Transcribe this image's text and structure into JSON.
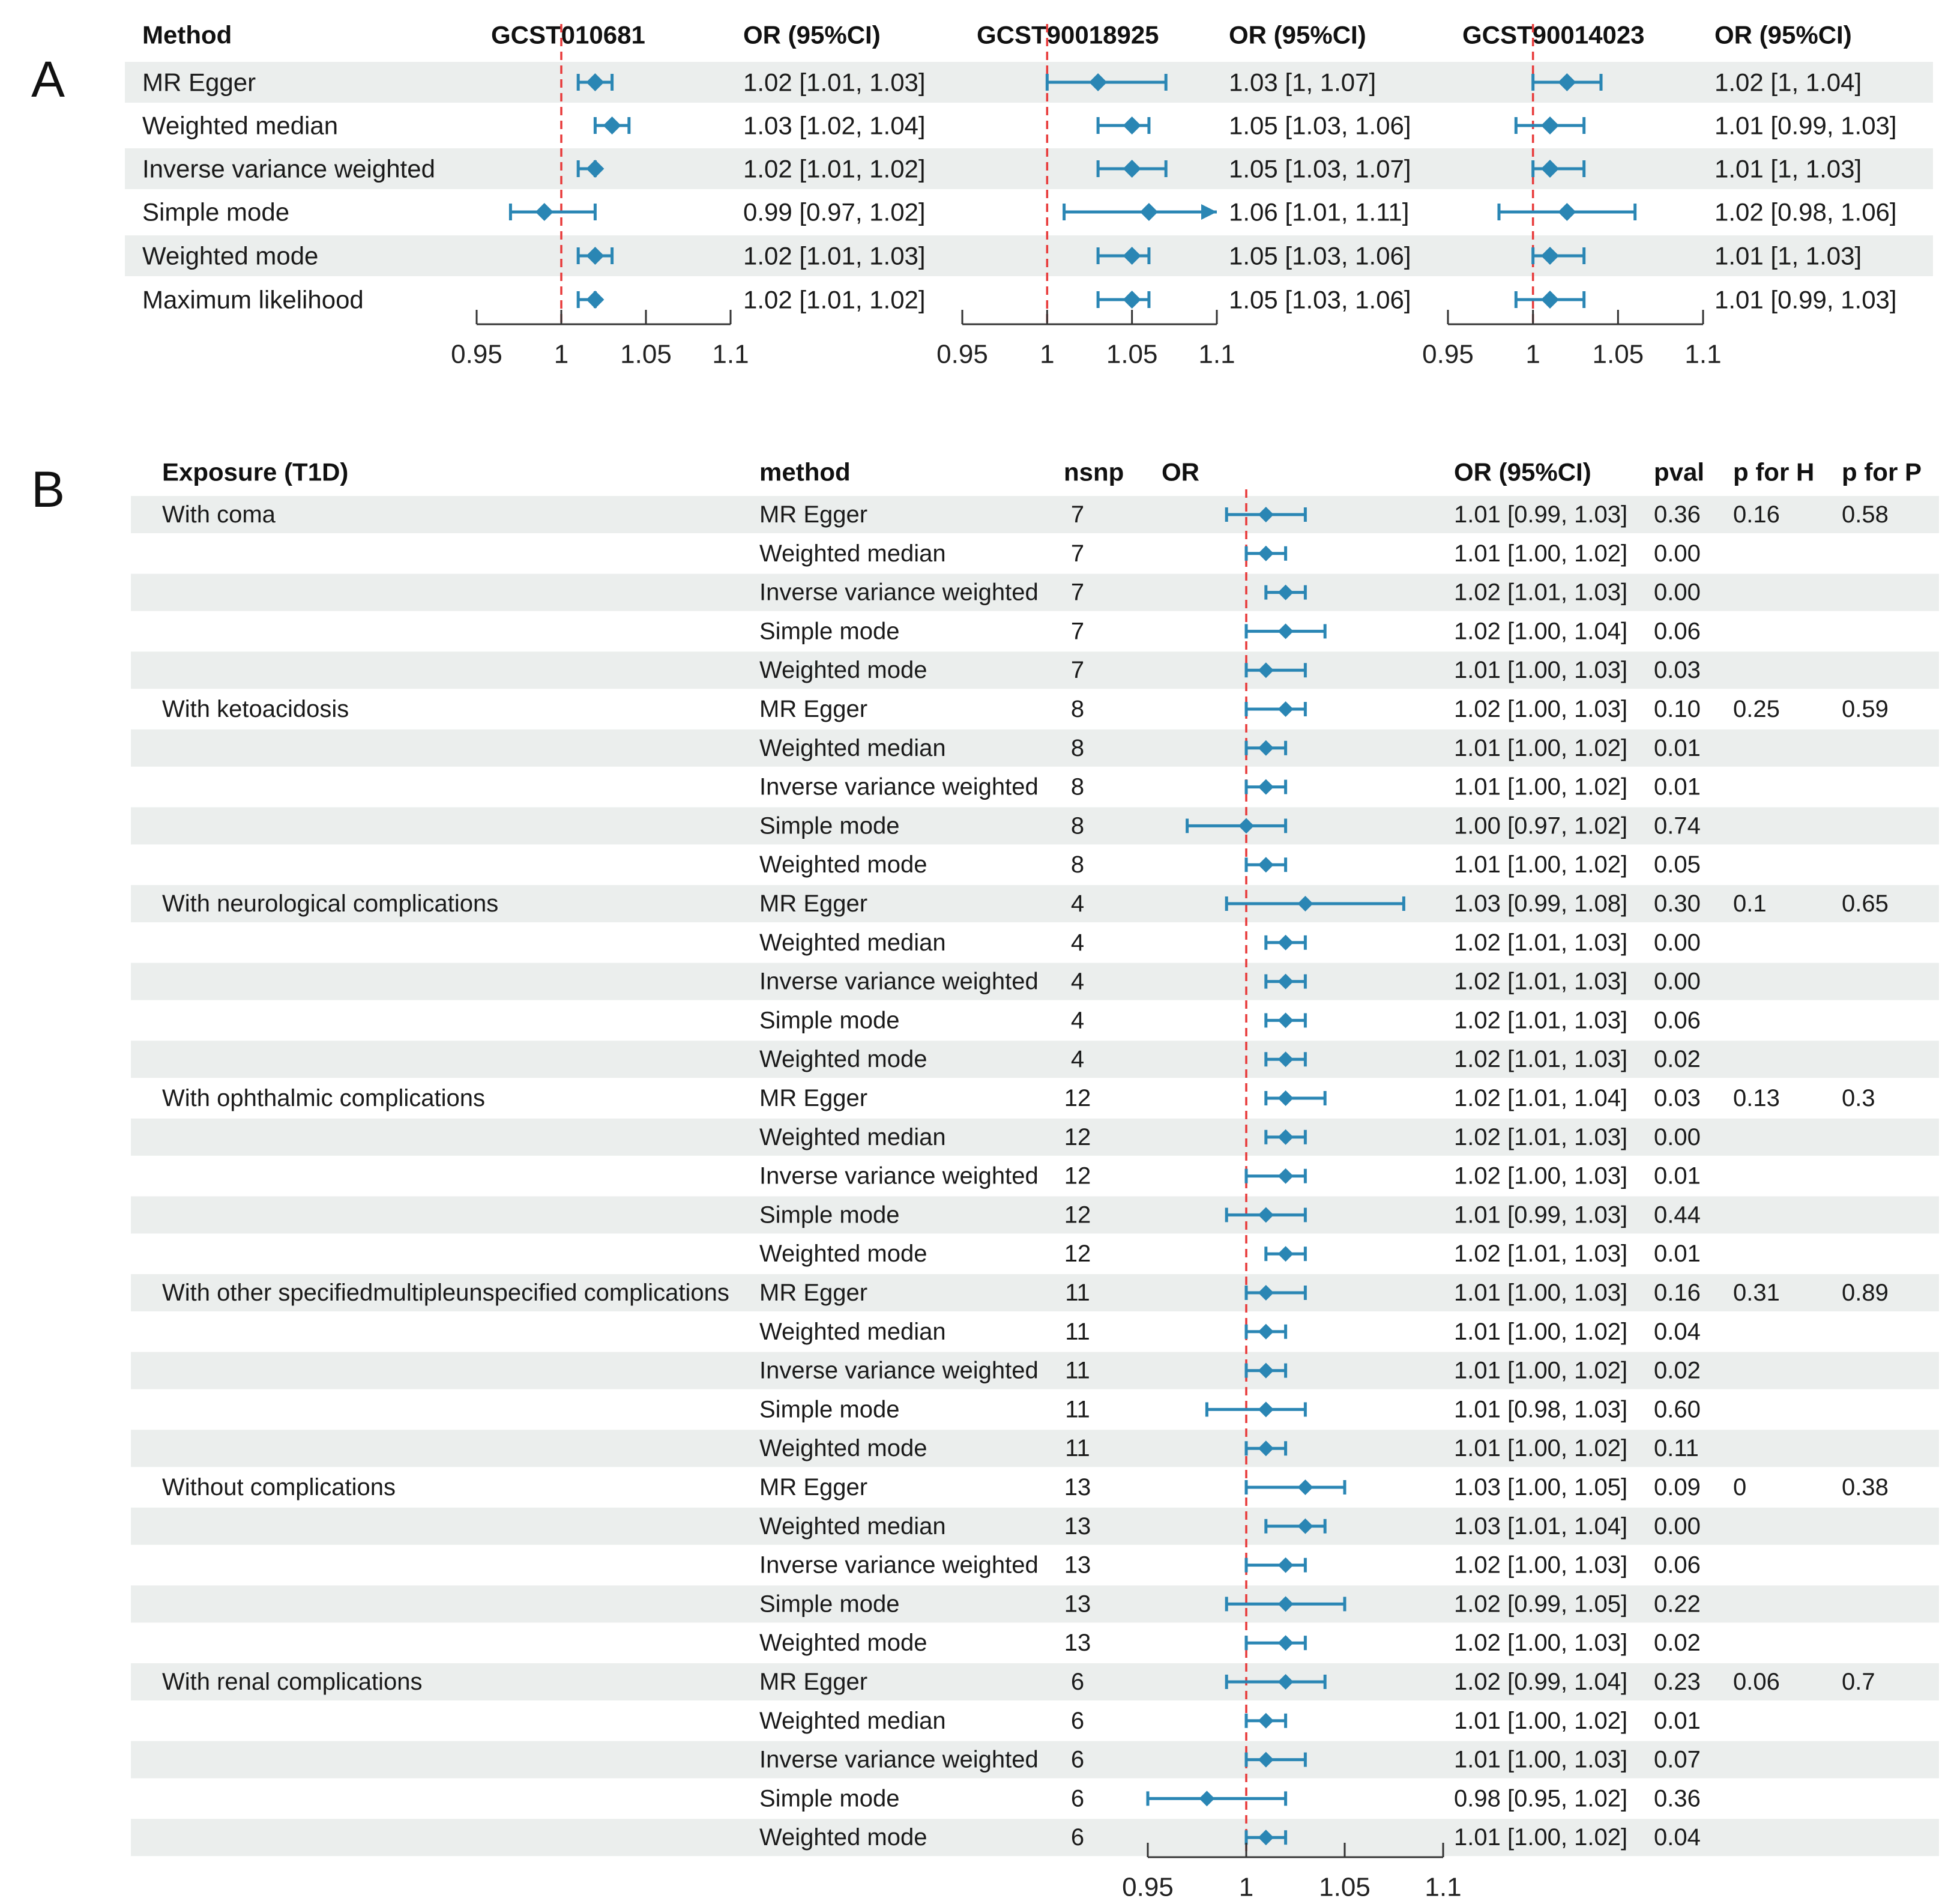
{
  "panel_a": {
    "letter": "A",
    "headers": {
      "method": "Method",
      "or": "OR (95%CI)"
    },
    "methods": [
      "MR Egger",
      "Weighted median",
      "Inverse variance weighted",
      "Simple mode",
      "Weighted mode",
      "Maximum likelihood"
    ],
    "xlim": [
      0.95,
      1.1
    ],
    "ticks": [
      0.95,
      1,
      1.05,
      1.1
    ],
    "tick_labels": [
      "0.95",
      "1",
      "1.05",
      "1.1"
    ],
    "reference": 1,
    "studies": [
      {
        "name": "GCST010681",
        "or_text": [
          "1.02 [1.01, 1.03]",
          "1.03 [1.02, 1.04]",
          "1.02 [1.01, 1.02]",
          "0.99 [0.97, 1.02]",
          "1.02 [1.01, 1.03]",
          "1.02 [1.01, 1.02]"
        ],
        "or": [
          1.02,
          1.03,
          1.02,
          0.99,
          1.02,
          1.02
        ],
        "lower": [
          1.01,
          1.02,
          1.01,
          0.97,
          1.01,
          1.01
        ],
        "upper": [
          1.03,
          1.04,
          1.02,
          1.02,
          1.03,
          1.02
        ]
      },
      {
        "name": "GCST90018925",
        "or_text": [
          "1.03 [1, 1.07]",
          "1.05 [1.03, 1.06]",
          "1.05 [1.03, 1.07]",
          "1.06 [1.01, 1.11]",
          "1.05 [1.03, 1.06]",
          "1.05 [1.03, 1.06]"
        ],
        "or": [
          1.03,
          1.05,
          1.05,
          1.06,
          1.05,
          1.05
        ],
        "lower": [
          1.0,
          1.03,
          1.03,
          1.01,
          1.03,
          1.03
        ],
        "upper": [
          1.07,
          1.06,
          1.07,
          1.11,
          1.06,
          1.06
        ]
      },
      {
        "name": "GCST90014023",
        "or_text": [
          "1.02 [1, 1.04]",
          "1.01 [0.99, 1.03]",
          "1.01 [1, 1.03]",
          "1.02 [0.98, 1.06]",
          "1.01 [1, 1.03]",
          "1.01 [0.99, 1.03]"
        ],
        "or": [
          1.02,
          1.01,
          1.01,
          1.02,
          1.01,
          1.01
        ],
        "lower": [
          1.0,
          0.99,
          1.0,
          0.98,
          1.0,
          0.99
        ],
        "upper": [
          1.04,
          1.03,
          1.03,
          1.06,
          1.03,
          1.03
        ]
      }
    ]
  },
  "panel_b": {
    "letter": "B",
    "headers": {
      "exposure": "Exposure (T1D)",
      "method": "method",
      "nsnp": "nsnp",
      "or": "OR",
      "or_ci": "OR (95%CI)",
      "pval": "pval",
      "p_h": "p for H",
      "p_p": "p for P"
    },
    "xlim": [
      0.95,
      1.1
    ],
    "ticks": [
      0.95,
      1,
      1.05,
      1.1
    ],
    "tick_labels": [
      "0.95",
      "1",
      "1.05",
      "1.1"
    ],
    "reference": 1,
    "rows": [
      {
        "exposure": "With coma",
        "method": "MR Egger",
        "nsnp": "7",
        "or_text": "1.01 [0.99, 1.03]",
        "pval": "0.36",
        "p_h": "0.16",
        "p_p": "0.58",
        "or": 1.01,
        "lower": 0.99,
        "upper": 1.03
      },
      {
        "exposure": "",
        "method": "Weighted median",
        "nsnp": "7",
        "or_text": "1.01 [1.00, 1.02]",
        "pval": "0.00",
        "p_h": "",
        "p_p": "",
        "or": 1.01,
        "lower": 1.0,
        "upper": 1.02
      },
      {
        "exposure": "",
        "method": "Inverse variance weighted",
        "nsnp": "7",
        "or_text": "1.02 [1.01, 1.03]",
        "pval": "0.00",
        "p_h": "",
        "p_p": "",
        "or": 1.02,
        "lower": 1.01,
        "upper": 1.03
      },
      {
        "exposure": "",
        "method": "Simple mode",
        "nsnp": "7",
        "or_text": "1.02 [1.00, 1.04]",
        "pval": "0.06",
        "p_h": "",
        "p_p": "",
        "or": 1.02,
        "lower": 1.0,
        "upper": 1.04
      },
      {
        "exposure": "",
        "method": "Weighted mode",
        "nsnp": "7",
        "or_text": "1.01 [1.00, 1.03]",
        "pval": "0.03",
        "p_h": "",
        "p_p": "",
        "or": 1.01,
        "lower": 1.0,
        "upper": 1.03
      },
      {
        "exposure": "With ketoacidosis",
        "method": "MR Egger",
        "nsnp": "8",
        "or_text": "1.02 [1.00, 1.03]",
        "pval": "0.10",
        "p_h": "0.25",
        "p_p": "0.59",
        "or": 1.02,
        "lower": 1.0,
        "upper": 1.03
      },
      {
        "exposure": "",
        "method": "Weighted median",
        "nsnp": "8",
        "or_text": "1.01 [1.00, 1.02]",
        "pval": "0.01",
        "p_h": "",
        "p_p": "",
        "or": 1.01,
        "lower": 1.0,
        "upper": 1.02
      },
      {
        "exposure": "",
        "method": "Inverse variance weighted",
        "nsnp": "8",
        "or_text": "1.01 [1.00, 1.02]",
        "pval": "0.01",
        "p_h": "",
        "p_p": "",
        "or": 1.01,
        "lower": 1.0,
        "upper": 1.02
      },
      {
        "exposure": "",
        "method": "Simple mode",
        "nsnp": "8",
        "or_text": "1.00 [0.97, 1.02]",
        "pval": "0.74",
        "p_h": "",
        "p_p": "",
        "or": 1.0,
        "lower": 0.97,
        "upper": 1.02
      },
      {
        "exposure": "",
        "method": "Weighted mode",
        "nsnp": "8",
        "or_text": "1.01 [1.00, 1.02]",
        "pval": "0.05",
        "p_h": "",
        "p_p": "",
        "or": 1.01,
        "lower": 1.0,
        "upper": 1.02
      },
      {
        "exposure": "With neurological complications",
        "method": "MR Egger",
        "nsnp": "4",
        "or_text": "1.03 [0.99, 1.08]",
        "pval": "0.30",
        "p_h": "0.1",
        "p_p": "0.65",
        "or": 1.03,
        "lower": 0.99,
        "upper": 1.08
      },
      {
        "exposure": "",
        "method": "Weighted median",
        "nsnp": "4",
        "or_text": "1.02 [1.01, 1.03]",
        "pval": "0.00",
        "p_h": "",
        "p_p": "",
        "or": 1.02,
        "lower": 1.01,
        "upper": 1.03
      },
      {
        "exposure": "",
        "method": "Inverse variance weighted",
        "nsnp": "4",
        "or_text": "1.02 [1.01, 1.03]",
        "pval": "0.00",
        "p_h": "",
        "p_p": "",
        "or": 1.02,
        "lower": 1.01,
        "upper": 1.03
      },
      {
        "exposure": "",
        "method": "Simple mode",
        "nsnp": "4",
        "or_text": "1.02 [1.01, 1.03]",
        "pval": "0.06",
        "p_h": "",
        "p_p": "",
        "or": 1.02,
        "lower": 1.01,
        "upper": 1.03
      },
      {
        "exposure": "",
        "method": "Weighted mode",
        "nsnp": "4",
        "or_text": "1.02 [1.01, 1.03]",
        "pval": "0.02",
        "p_h": "",
        "p_p": "",
        "or": 1.02,
        "lower": 1.01,
        "upper": 1.03
      },
      {
        "exposure": "With ophthalmic complications",
        "method": "MR Egger",
        "nsnp": "12",
        "or_text": "1.02 [1.01, 1.04]",
        "pval": "0.03",
        "p_h": "0.13",
        "p_p": "0.3",
        "or": 1.02,
        "lower": 1.01,
        "upper": 1.04
      },
      {
        "exposure": "",
        "method": "Weighted median",
        "nsnp": "12",
        "or_text": "1.02 [1.01, 1.03]",
        "pval": "0.00",
        "p_h": "",
        "p_p": "",
        "or": 1.02,
        "lower": 1.01,
        "upper": 1.03
      },
      {
        "exposure": "",
        "method": "Inverse variance weighted",
        "nsnp": "12",
        "or_text": "1.02 [1.00, 1.03]",
        "pval": "0.01",
        "p_h": "",
        "p_p": "",
        "or": 1.02,
        "lower": 1.0,
        "upper": 1.03
      },
      {
        "exposure": "",
        "method": "Simple mode",
        "nsnp": "12",
        "or_text": "1.01 [0.99, 1.03]",
        "pval": "0.44",
        "p_h": "",
        "p_p": "",
        "or": 1.01,
        "lower": 0.99,
        "upper": 1.03
      },
      {
        "exposure": "",
        "method": "Weighted mode",
        "nsnp": "12",
        "or_text": "1.02 [1.01, 1.03]",
        "pval": "0.01",
        "p_h": "",
        "p_p": "",
        "or": 1.02,
        "lower": 1.01,
        "upper": 1.03
      },
      {
        "exposure": "With other specifiedmultipleunspecified complications",
        "method": "MR Egger",
        "nsnp": "11",
        "or_text": "1.01 [1.00, 1.03]",
        "pval": "0.16",
        "p_h": "0.31",
        "p_p": "0.89",
        "or": 1.01,
        "lower": 1.0,
        "upper": 1.03
      },
      {
        "exposure": "",
        "method": "Weighted median",
        "nsnp": "11",
        "or_text": "1.01 [1.00, 1.02]",
        "pval": "0.04",
        "p_h": "",
        "p_p": "",
        "or": 1.01,
        "lower": 1.0,
        "upper": 1.02
      },
      {
        "exposure": "",
        "method": "Inverse variance weighted",
        "nsnp": "11",
        "or_text": "1.01 [1.00, 1.02]",
        "pval": "0.02",
        "p_h": "",
        "p_p": "",
        "or": 1.01,
        "lower": 1.0,
        "upper": 1.02
      },
      {
        "exposure": "",
        "method": "Simple mode",
        "nsnp": "11",
        "or_text": "1.01 [0.98, 1.03]",
        "pval": "0.60",
        "p_h": "",
        "p_p": "",
        "or": 1.01,
        "lower": 0.98,
        "upper": 1.03
      },
      {
        "exposure": "",
        "method": "Weighted mode",
        "nsnp": "11",
        "or_text": "1.01 [1.00, 1.02]",
        "pval": "0.11",
        "p_h": "",
        "p_p": "",
        "or": 1.01,
        "lower": 1.0,
        "upper": 1.02
      },
      {
        "exposure": "Without complications",
        "method": "MR Egger",
        "nsnp": "13",
        "or_text": "1.03 [1.00, 1.05]",
        "pval": "0.09",
        "p_h": "0",
        "p_p": "0.38",
        "or": 1.03,
        "lower": 1.0,
        "upper": 1.05
      },
      {
        "exposure": "",
        "method": "Weighted median",
        "nsnp": "13",
        "or_text": "1.03 [1.01, 1.04]",
        "pval": "0.00",
        "p_h": "",
        "p_p": "",
        "or": 1.03,
        "lower": 1.01,
        "upper": 1.04
      },
      {
        "exposure": "",
        "method": "Inverse variance weighted",
        "nsnp": "13",
        "or_text": "1.02 [1.00, 1.03]",
        "pval": "0.06",
        "p_h": "",
        "p_p": "",
        "or": 1.02,
        "lower": 1.0,
        "upper": 1.03
      },
      {
        "exposure": "",
        "method": "Simple mode",
        "nsnp": "13",
        "or_text": "1.02 [0.99, 1.05]",
        "pval": "0.22",
        "p_h": "",
        "p_p": "",
        "or": 1.02,
        "lower": 0.99,
        "upper": 1.05
      },
      {
        "exposure": "",
        "method": "Weighted mode",
        "nsnp": "13",
        "or_text": "1.02 [1.00, 1.03]",
        "pval": "0.02",
        "p_h": "",
        "p_p": "",
        "or": 1.02,
        "lower": 1.0,
        "upper": 1.03
      },
      {
        "exposure": "With renal complications",
        "method": "MR Egger",
        "nsnp": "6",
        "or_text": "1.02 [0.99, 1.04]",
        "pval": "0.23",
        "p_h": "0.06",
        "p_p": "0.7",
        "or": 1.02,
        "lower": 0.99,
        "upper": 1.04
      },
      {
        "exposure": "",
        "method": "Weighted median",
        "nsnp": "6",
        "or_text": "1.01 [1.00, 1.02]",
        "pval": "0.01",
        "p_h": "",
        "p_p": "",
        "or": 1.01,
        "lower": 1.0,
        "upper": 1.02
      },
      {
        "exposure": "",
        "method": "Inverse variance weighted",
        "nsnp": "6",
        "or_text": "1.01 [1.00, 1.03]",
        "pval": "0.07",
        "p_h": "",
        "p_p": "",
        "or": 1.01,
        "lower": 1.0,
        "upper": 1.03
      },
      {
        "exposure": "",
        "method": "Simple mode",
        "nsnp": "6",
        "or_text": "0.98 [0.95, 1.02]",
        "pval": "0.36",
        "p_h": "",
        "p_p": "",
        "or": 0.98,
        "lower": 0.95,
        "upper": 1.02
      },
      {
        "exposure": "",
        "method": "Weighted mode",
        "nsnp": "6",
        "or_text": "1.01 [1.00, 1.02]",
        "pval": "0.04",
        "p_h": "",
        "p_p": "",
        "or": 1.01,
        "lower": 1.0,
        "upper": 1.02
      }
    ]
  },
  "chart_data": [
    {
      "type": "forest",
      "panel": "A",
      "xlim": [
        0.95,
        1.1
      ],
      "reference_line": 1,
      "categories": [
        "MR Egger",
        "Weighted median",
        "Inverse variance weighted",
        "Simple mode",
        "Weighted mode",
        "Maximum likelihood"
      ],
      "series": [
        {
          "name": "GCST010681",
          "or": [
            1.02,
            1.03,
            1.02,
            0.99,
            1.02,
            1.02
          ],
          "lower": [
            1.01,
            1.02,
            1.01,
            0.97,
            1.01,
            1.01
          ],
          "upper": [
            1.03,
            1.04,
            1.02,
            1.02,
            1.03,
            1.02
          ]
        },
        {
          "name": "GCST90018925",
          "or": [
            1.03,
            1.05,
            1.05,
            1.06,
            1.05,
            1.05
          ],
          "lower": [
            1.0,
            1.03,
            1.03,
            1.01,
            1.03,
            1.03
          ],
          "upper": [
            1.07,
            1.06,
            1.07,
            1.11,
            1.06,
            1.06
          ]
        },
        {
          "name": "GCST90014023",
          "or": [
            1.02,
            1.01,
            1.01,
            1.02,
            1.01,
            1.01
          ],
          "lower": [
            1.0,
            0.99,
            1.0,
            0.98,
            1.0,
            0.99
          ],
          "upper": [
            1.04,
            1.03,
            1.03,
            1.06,
            1.03,
            1.03
          ]
        }
      ]
    },
    {
      "type": "forest",
      "panel": "B",
      "xlim": [
        0.95,
        1.1
      ],
      "reference_line": 1,
      "note": "35 rows; values in panel_b.rows (or, lower, upper)"
    }
  ],
  "colors": {
    "marker": "#2a86b4",
    "reference_line": "#e83a3a",
    "stripe": "#ebeeed",
    "axis": "#333333"
  }
}
